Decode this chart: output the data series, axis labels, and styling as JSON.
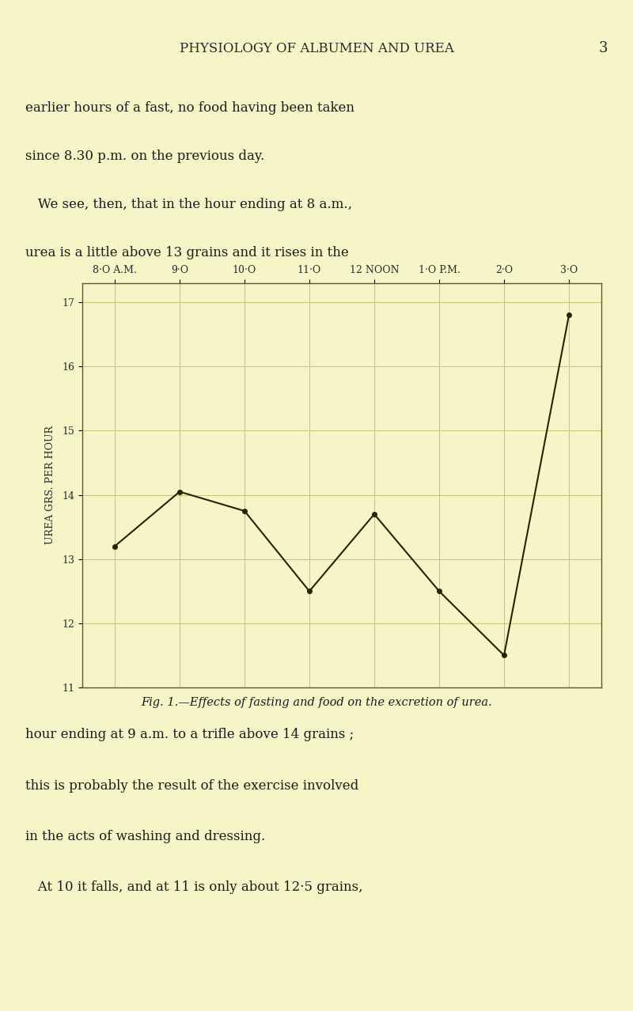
{
  "x_labels": [
    "8·O A.M.",
    "9·O",
    "10·O",
    "11·O",
    "12 NOON",
    "1·O P.M.",
    "2·O",
    "3·O"
  ],
  "x_positions": [
    0,
    1,
    2,
    3,
    4,
    5,
    6,
    7
  ],
  "y_values": [
    13.2,
    14.05,
    13.75,
    12.5,
    13.7,
    12.5,
    11.5,
    16.8
  ],
  "y_ticks": [
    11,
    12,
    13,
    14,
    15,
    16,
    17
  ],
  "y_min": 11,
  "y_max": 17.3,
  "ylabel": "UREA GRS. PER HOUR",
  "line_color": "#2d2000",
  "marker_color": "#2d2000",
  "bg_color": "#f5f5c8",
  "grid_color": "#c8c87a",
  "page_bg": "#f5f5c8",
  "title_text": "PHYSIOLOGY OF ALBUMEN AND UREA",
  "title_page_num": "3",
  "fig_caption": "Fig. 1.—Effects of fasting and food on the excretion of urea.",
  "text_top1": "earlier hours of a fast, no food having been taken",
  "text_top2": "since 8.30 p.m. on the previous day.",
  "text_top3": "   We see, then, that in the hour ending at 8 a.m.,",
  "text_top4": "urea is a little above 13 grains and it rises in the",
  "text_bot1": "hour ending at 9 a.m. to a trifle above 14 grains ;",
  "text_bot2": "this is probably the result of the exercise involved",
  "text_bot3": "in the acts of washing and dressing.",
  "text_bot4": "   At 10 it falls, and at 11 is only about 12·5 grains,"
}
